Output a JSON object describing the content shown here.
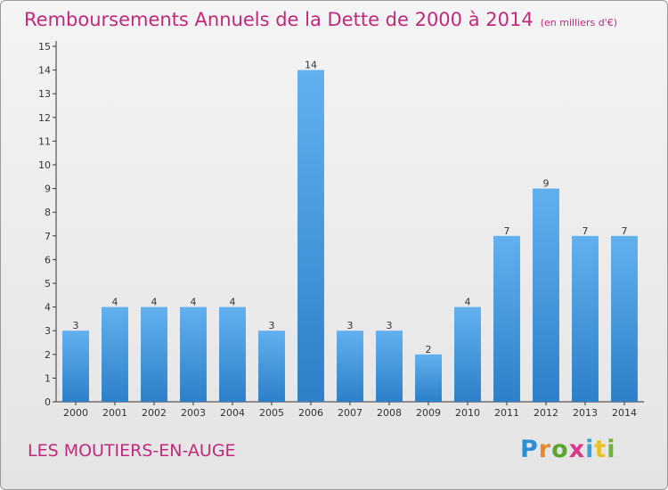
{
  "title": "Remboursements Annuels de la Dette de 2000 à 2014",
  "unit": "(en milliers d'€)",
  "commune": "LES MOUTIERS-EN-AUGE",
  "logo": {
    "text": "Proxiti",
    "letters": [
      "P",
      "r",
      "o",
      "x",
      "i",
      "t",
      "i"
    ],
    "colors": [
      "#2b8fd6",
      "#e8862a",
      "#5aa72f",
      "#d63a8a",
      "#3aa0d8",
      "#e8c22a",
      "#6db33f"
    ]
  },
  "colors": {
    "bar": "#4a9be0",
    "bar_light": "#62b0ee",
    "bar_dark": "#2d7fc8",
    "title": "#c0297c",
    "axis": "#333333"
  },
  "chart_data": {
    "type": "bar",
    "categories": [
      "2000",
      "2001",
      "2002",
      "2003",
      "2004",
      "2005",
      "2006",
      "2007",
      "2008",
      "2009",
      "2010",
      "2011",
      "2012",
      "2013",
      "2014"
    ],
    "values": [
      3,
      4,
      4,
      4,
      4,
      3,
      14,
      3,
      3,
      2,
      4,
      7,
      9,
      7,
      7
    ],
    "ylim": [
      0,
      15
    ],
    "yticks": [
      0,
      1,
      2,
      3,
      4,
      5,
      6,
      7,
      8,
      9,
      10,
      11,
      12,
      13,
      14,
      15
    ],
    "grid": false,
    "data_labels": true
  }
}
